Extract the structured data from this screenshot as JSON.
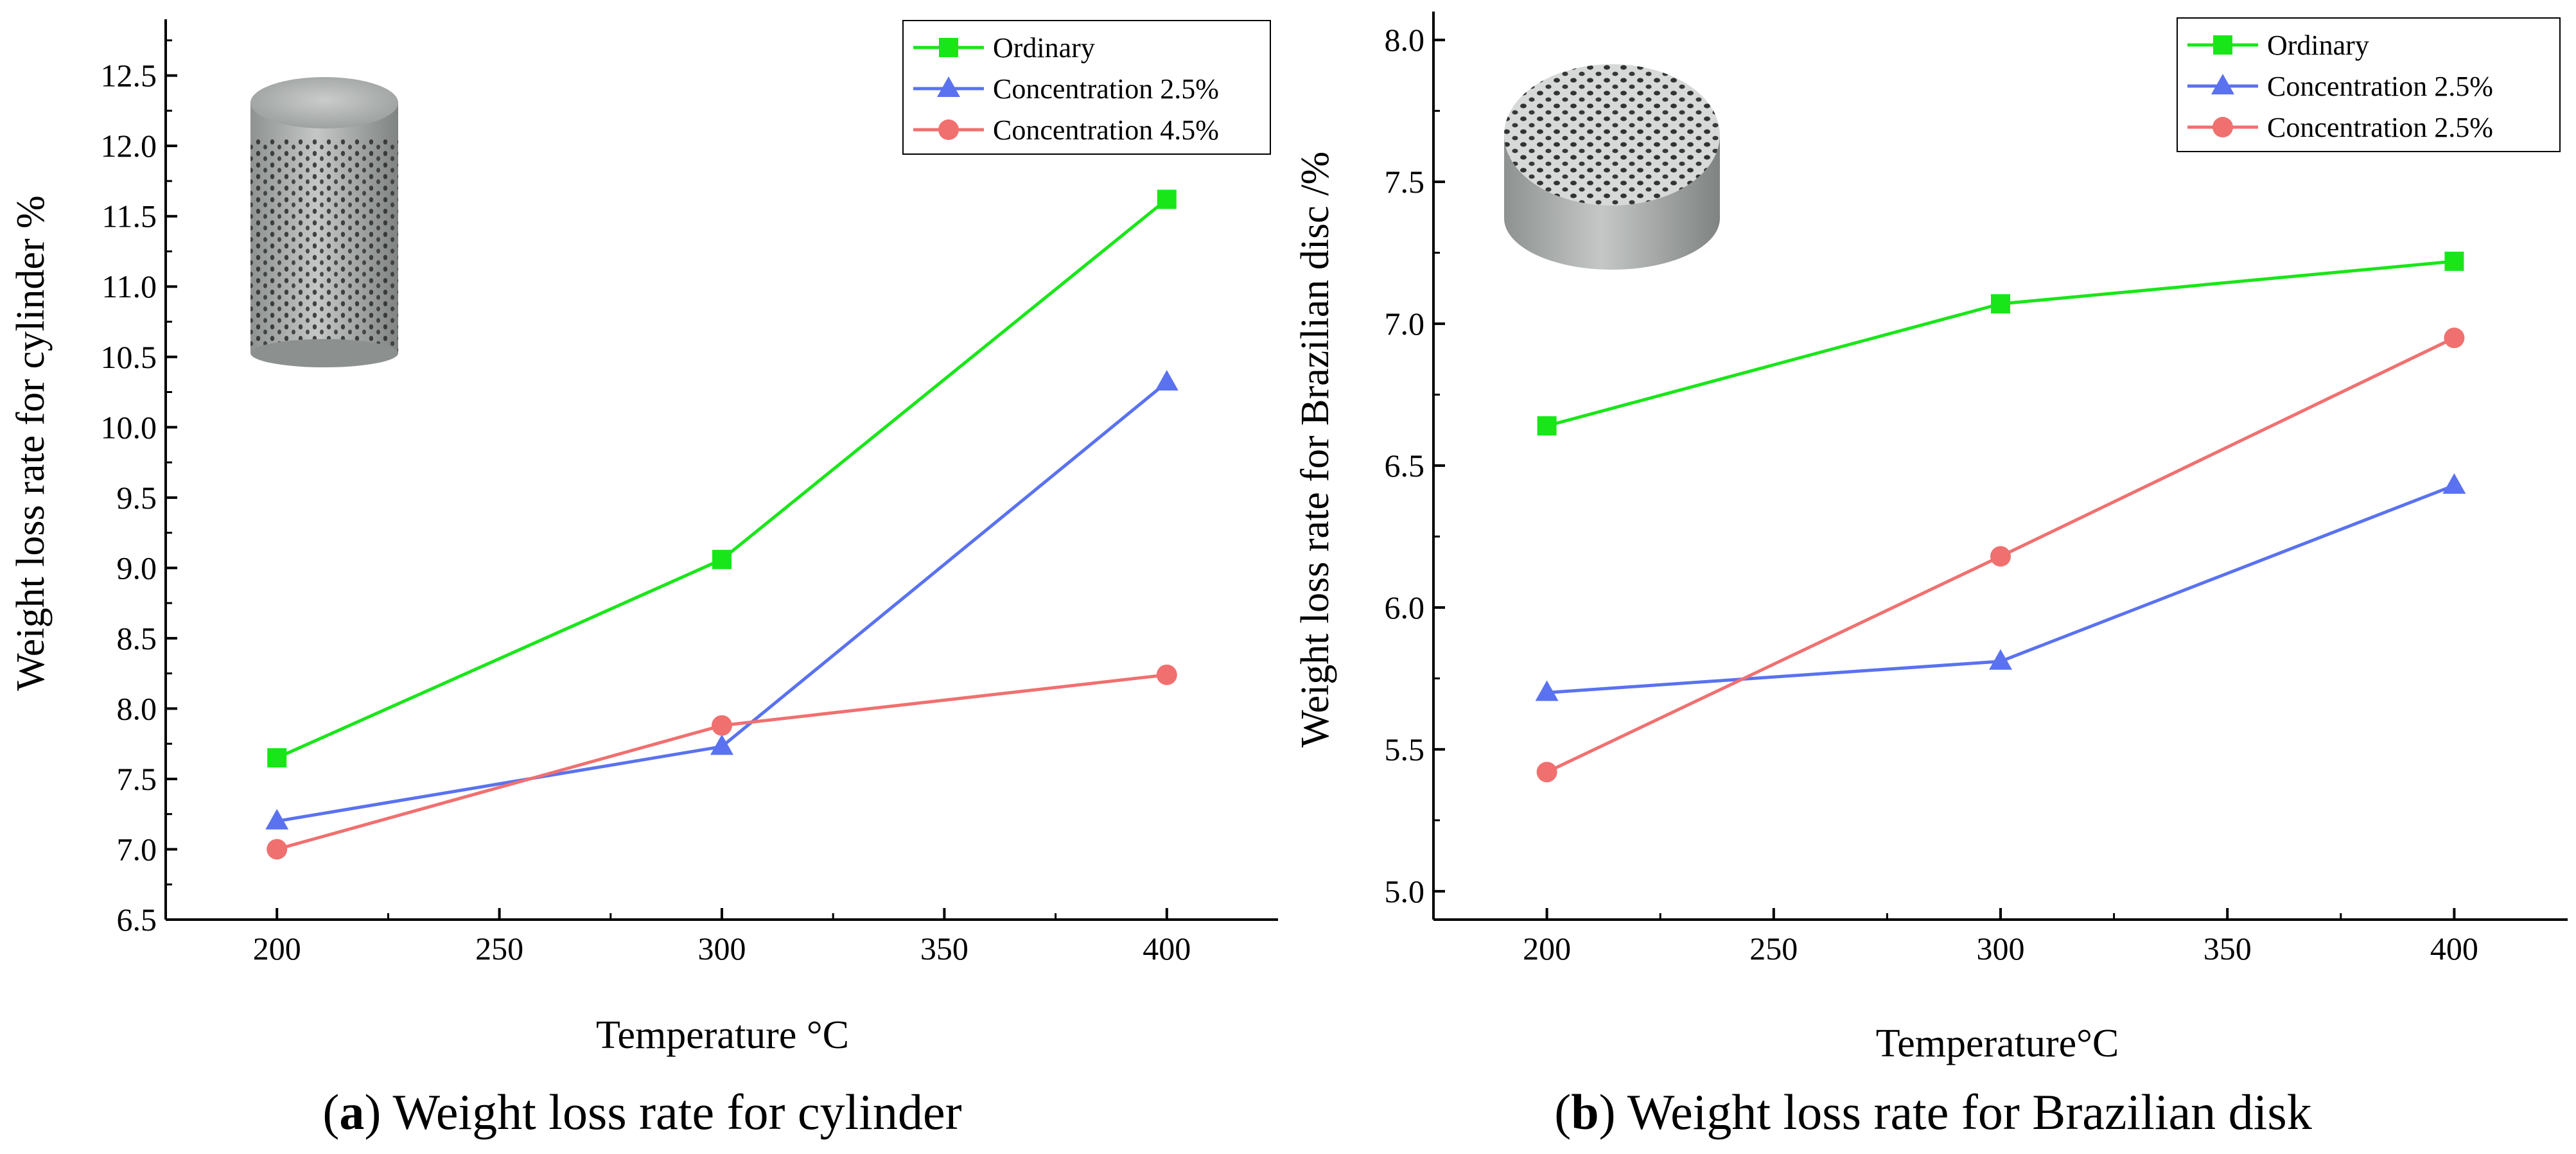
{
  "chart_data": [
    {
      "type": "line",
      "panel_label": "a",
      "caption": "Weight loss rate for cylinder",
      "xlabel": "Temperature °C",
      "ylabel": "Weight loss rate for cylinder %",
      "xlim": [
        175,
        425
      ],
      "ylim": [
        6.5,
        12.9
      ],
      "xticks": [
        200,
        250,
        300,
        350,
        400
      ],
      "yticks": [
        6.5,
        7.0,
        7.5,
        8.0,
        8.5,
        9.0,
        9.5,
        10.0,
        10.5,
        11.0,
        11.5,
        12.0,
        12.5
      ],
      "grid": false,
      "legend_position": "top-right",
      "specimen_photo": "cylinder specimen",
      "x": [
        200,
        300,
        400
      ],
      "series": [
        {
          "name": "Ordinary",
          "marker": "square",
          "color": "#19e619",
          "values": [
            7.65,
            9.06,
            11.62
          ]
        },
        {
          "name": "Concentration 2.5%",
          "marker": "triangle",
          "color": "#5a72f0",
          "values": [
            7.2,
            7.73,
            10.32
          ]
        },
        {
          "name": "Concentration 4.5%",
          "marker": "circle",
          "color": "#f07070",
          "values": [
            7.0,
            7.88,
            8.24
          ]
        }
      ]
    },
    {
      "type": "line",
      "panel_label": "b",
      "caption": "Weight loss rate for Brazilian disk",
      "xlabel": "Temperature°C",
      "ylabel": "Weight loss rate for Brazilian disc /%",
      "xlim": [
        175,
        425
      ],
      "ylim": [
        4.9,
        8.1
      ],
      "xticks": [
        200,
        250,
        300,
        350,
        400
      ],
      "yticks": [
        5.0,
        5.5,
        6.0,
        6.5,
        7.0,
        7.5,
        8.0
      ],
      "grid": false,
      "legend_position": "top-right",
      "specimen_photo": "Brazilian disc specimen",
      "x": [
        200,
        300,
        400
      ],
      "series": [
        {
          "name": "Ordinary",
          "marker": "square",
          "color": "#19e619",
          "values": [
            6.64,
            7.07,
            7.22
          ]
        },
        {
          "name": "Concentration 2.5%",
          "marker": "triangle",
          "color": "#5a72f0",
          "values": [
            5.7,
            5.81,
            6.43
          ]
        },
        {
          "name": "Concentration 2.5%",
          "marker": "circle",
          "color": "#f07070",
          "values": [
            5.42,
            6.18,
            6.95
          ]
        }
      ]
    }
  ]
}
